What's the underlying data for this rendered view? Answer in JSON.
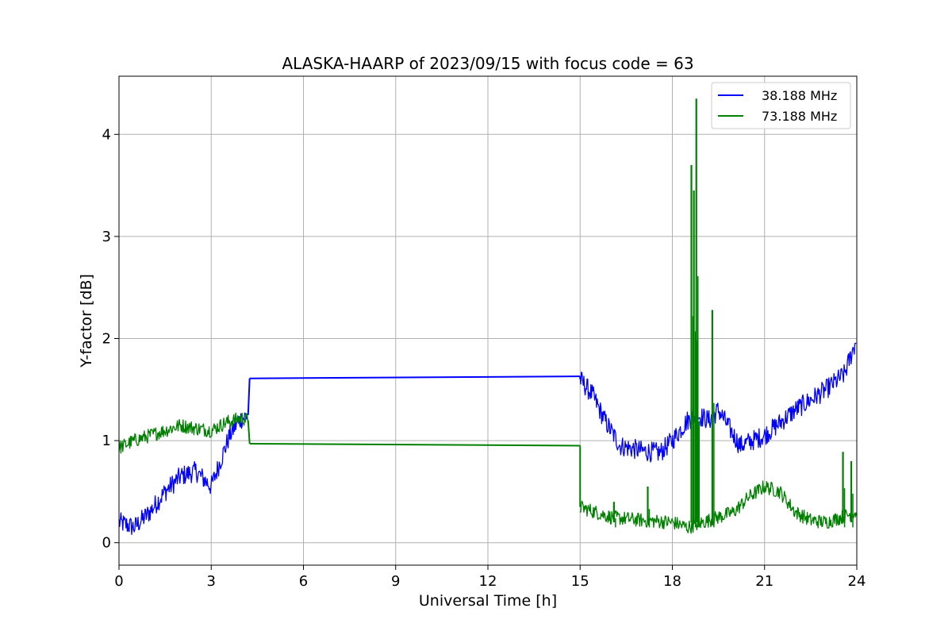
{
  "chart_data": {
    "type": "line",
    "title": "ALASKA-HAARP of 2023/09/15 with focus code = 63",
    "xlabel": "Universal Time [h]",
    "ylabel": "Y-factor [dB]",
    "xlim": [
      0,
      24
    ],
    "ylim": [
      -0.22,
      4.57
    ],
    "xticks": [
      0,
      3,
      6,
      9,
      12,
      15,
      18,
      21,
      24
    ],
    "yticks": [
      0,
      1,
      2,
      3,
      4
    ],
    "grid": true,
    "legend_position": "top-right",
    "series": [
      {
        "name": "38.188 MHz",
        "color": "#0000ff",
        "noise": 0.1,
        "points": [
          [
            0.0,
            0.2
          ],
          [
            0.5,
            0.15
          ],
          [
            1.0,
            0.3
          ],
          [
            1.5,
            0.5
          ],
          [
            2.0,
            0.65
          ],
          [
            2.5,
            0.7
          ],
          [
            3.0,
            0.55
          ],
          [
            3.3,
            0.8
          ],
          [
            3.6,
            1.05
          ],
          [
            3.9,
            1.2
          ],
          [
            4.2,
            1.25
          ],
          {
            "gap": true
          },
          [
            4.25,
            1.61
          ],
          [
            15.0,
            1.63
          ],
          {
            "gap": true
          },
          [
            15.0,
            1.6
          ],
          [
            15.4,
            1.45
          ],
          [
            15.8,
            1.2
          ],
          [
            16.3,
            0.95
          ],
          [
            17.0,
            0.9
          ],
          [
            17.6,
            0.88
          ],
          [
            18.0,
            1.0
          ],
          [
            18.5,
            1.2
          ],
          [
            18.8,
            1.25
          ],
          [
            19.2,
            1.2
          ],
          [
            19.5,
            1.3
          ],
          [
            19.8,
            1.15
          ],
          [
            20.2,
            0.95
          ],
          [
            21.0,
            1.05
          ],
          [
            22.0,
            1.3
          ],
          [
            23.0,
            1.5
          ],
          [
            23.6,
            1.65
          ],
          [
            24.0,
            2.0
          ]
        ]
      },
      {
        "name": "73.188 MHz",
        "color": "#008000",
        "noise": 0.07,
        "points": [
          [
            0.0,
            0.93
          ],
          [
            0.5,
            1.0
          ],
          [
            1.0,
            1.05
          ],
          [
            1.5,
            1.1
          ],
          [
            2.0,
            1.15
          ],
          [
            2.5,
            1.12
          ],
          [
            3.0,
            1.1
          ],
          [
            3.5,
            1.18
          ],
          [
            4.0,
            1.22
          ],
          [
            4.2,
            1.2
          ],
          {
            "gap": true
          },
          [
            4.25,
            0.97
          ],
          [
            15.0,
            0.95
          ],
          {
            "gap": true
          },
          [
            15.0,
            0.35
          ],
          [
            16.0,
            0.25
          ],
          [
            17.0,
            0.22
          ],
          [
            18.0,
            0.2
          ],
          [
            18.5,
            0.15
          ],
          [
            19.0,
            0.2
          ],
          [
            19.5,
            0.25
          ],
          [
            20.0,
            0.3
          ],
          [
            20.5,
            0.45
          ],
          [
            21.0,
            0.55
          ],
          [
            21.5,
            0.5
          ],
          [
            22.0,
            0.3
          ],
          [
            22.5,
            0.22
          ],
          [
            23.0,
            0.2
          ],
          [
            23.5,
            0.25
          ],
          [
            24.0,
            0.3
          ]
        ],
        "spikes": [
          [
            18.62,
            3.7
          ],
          [
            18.7,
            3.45
          ],
          [
            18.78,
            4.35
          ],
          [
            18.82,
            1.98
          ],
          [
            19.3,
            2.28
          ],
          [
            23.55,
            0.89
          ],
          [
            23.82,
            0.8
          ],
          [
            17.2,
            0.55
          ],
          [
            16.1,
            0.4
          ]
        ]
      }
    ]
  }
}
